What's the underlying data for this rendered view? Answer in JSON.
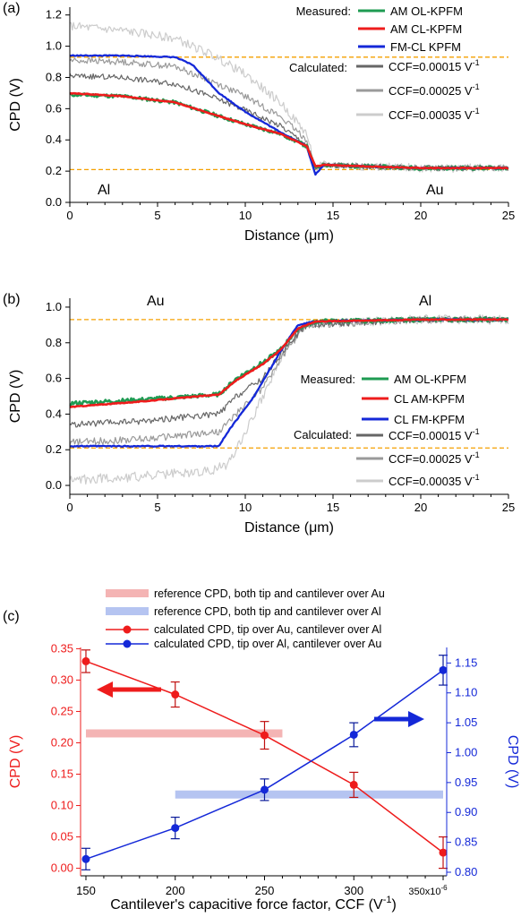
{
  "panels": [
    {
      "label": "(a)",
      "legend": {
        "measured_label": "Measured:",
        "calculated_label": "Calculated:",
        "entries": [
          "AM OL-KPFM",
          "AM CL-KPFM",
          "FM-CL KPFM",
          "CCF=0.00015 V",
          "CCF=0.00025 V",
          "CCF=0.00035 V"
        ],
        "unit_superscript": "-1"
      },
      "annotations": [
        "Al",
        "Au"
      ]
    },
    {
      "label": "(b)",
      "legend": {
        "measured_label": "Measured:",
        "calculated_label": "Calculated:",
        "entries": [
          "AM OL-KPFM",
          "CL AM-KPFM",
          "CL FM-KPFM",
          "CCF=0.00015 V",
          "CCF=0.00025 V",
          "CCF=0.00035 V"
        ],
        "unit_superscript": "-1"
      },
      "annotations": [
        "Au",
        "Al"
      ]
    },
    {
      "label": "(c)",
      "legend": {
        "entries": [
          "reference CPD, both tip and cantilever over Au",
          "reference CPD, both tip and cantilever over Al",
          "calculated CPD, tip over Au, cantilever over Al",
          "calculated CPD, tip over Al, cantilever over Au"
        ]
      },
      "xlabel": "Cantilever's capacitive force factor, CCF (V",
      "xlabel_sup": "-1",
      "xlabel_close": ")",
      "x_multiplier": "350x10",
      "x_multiplier_sup": "-6",
      "ylabel_left": "CPD (V)",
      "ylabel_right": "CPD (V)"
    }
  ],
  "colors": {
    "green": "#1e9b52",
    "red": "#ee1c1c",
    "blue": "#1428d8",
    "gray1": "#666666",
    "gray2": "#9a9a9a",
    "gray3": "#cccccc",
    "orange": "#f5a000",
    "pink": "#f4b4b4",
    "lightblue": "#b5c4f1",
    "errorbar_red": "#c01010",
    "errorbar_blue": "#0a1a9a"
  },
  "chart_data": [
    {
      "type": "line",
      "panel": "(a)",
      "xlabel": "Distance (μm)",
      "ylabel": "CPD (V)",
      "xlim": [
        0,
        25
      ],
      "ylim": [
        0,
        1.25
      ],
      "xticks": [
        "0",
        "5",
        "10",
        "15",
        "20",
        "25"
      ],
      "yticks": [
        "0.0",
        "0.2",
        "0.4",
        "0.6",
        "0.8",
        "1.0",
        "1.2"
      ],
      "reference_lines": [
        0.93,
        0.21
      ],
      "series": [
        {
          "name": "AM OL-KPFM",
          "x": [
            0,
            3,
            6,
            8,
            10,
            12,
            13.5,
            14,
            14.5,
            17,
            20,
            25
          ],
          "y": [
            0.69,
            0.68,
            0.64,
            0.57,
            0.5,
            0.44,
            0.36,
            0.22,
            0.24,
            0.23,
            0.22,
            0.22
          ]
        },
        {
          "name": "AM CL-KPFM",
          "x": [
            0,
            3,
            6,
            8,
            10,
            12,
            13.5,
            14,
            14.5,
            17,
            20,
            25
          ],
          "y": [
            0.7,
            0.68,
            0.64,
            0.57,
            0.5,
            0.44,
            0.36,
            0.23,
            0.24,
            0.23,
            0.22,
            0.22
          ]
        },
        {
          "name": "FM-CL KPFM",
          "x": [
            0,
            3,
            6,
            7,
            8.5,
            10,
            12,
            13.5,
            14,
            14.5,
            17,
            20,
            25
          ],
          "y": [
            0.94,
            0.94,
            0.93,
            0.88,
            0.7,
            0.58,
            0.45,
            0.36,
            0.18,
            0.24,
            0.23,
            0.22,
            0.22
          ]
        },
        {
          "name": "CCF=0.00015 V-1",
          "x": [
            0,
            3,
            6,
            8,
            10,
            12,
            13.5,
            14,
            14.5,
            17,
            20,
            25
          ],
          "y": [
            0.81,
            0.8,
            0.76,
            0.68,
            0.59,
            0.49,
            0.37,
            0.22,
            0.24,
            0.23,
            0.22,
            0.22
          ]
        },
        {
          "name": "CCF=0.00025 V-1",
          "x": [
            0,
            3,
            6,
            8,
            10,
            12,
            13.5,
            14,
            14.5,
            17,
            20,
            25
          ],
          "y": [
            0.91,
            0.9,
            0.87,
            0.78,
            0.68,
            0.55,
            0.4,
            0.22,
            0.24,
            0.23,
            0.22,
            0.22
          ]
        },
        {
          "name": "CCF=0.00035 V-1",
          "x": [
            0,
            3,
            6,
            8,
            10,
            12,
            13.5,
            14,
            14.5,
            17,
            20,
            25
          ],
          "y": [
            1.13,
            1.1,
            1.05,
            0.95,
            0.82,
            0.64,
            0.44,
            0.22,
            0.24,
            0.23,
            0.22,
            0.22
          ]
        }
      ]
    },
    {
      "type": "line",
      "panel": "(b)",
      "xlabel": "Distance (μm)",
      "ylabel": "CPD (V)",
      "xlim": [
        0,
        25
      ],
      "ylim": [
        -0.05,
        1.05
      ],
      "xticks": [
        "0",
        "5",
        "10",
        "15",
        "20",
        "25"
      ],
      "yticks": [
        "0.0",
        "0.2",
        "0.4",
        "0.6",
        "0.8",
        "1.0"
      ],
      "reference_lines": [
        0.93,
        0.21
      ],
      "series": [
        {
          "name": "AM OL-KPFM",
          "x": [
            0,
            4,
            8.5,
            9.5,
            11,
            12,
            13,
            14,
            20,
            25
          ],
          "y": [
            0.46,
            0.48,
            0.51,
            0.6,
            0.69,
            0.76,
            0.88,
            0.92,
            0.93,
            0.93
          ]
        },
        {
          "name": "CL AM-KPFM",
          "x": [
            0,
            4,
            8.5,
            9.5,
            11,
            12,
            13,
            14,
            20,
            25
          ],
          "y": [
            0.44,
            0.47,
            0.51,
            0.59,
            0.68,
            0.76,
            0.88,
            0.92,
            0.93,
            0.93
          ]
        },
        {
          "name": "CL FM-KPFM",
          "x": [
            0,
            4,
            8.5,
            9,
            10.5,
            12,
            13,
            14,
            20,
            25
          ],
          "y": [
            0.22,
            0.22,
            0.22,
            0.3,
            0.5,
            0.75,
            0.9,
            0.92,
            0.93,
            0.93
          ]
        },
        {
          "name": "CCF=0.00015 V-1",
          "x": [
            0,
            4,
            8.5,
            9.5,
            11,
            12.5,
            13.5,
            20,
            25
          ],
          "y": [
            0.34,
            0.36,
            0.4,
            0.5,
            0.6,
            0.8,
            0.9,
            0.93,
            0.93
          ]
        },
        {
          "name": "CCF=0.00025 V-1",
          "x": [
            0,
            4,
            8.5,
            9.5,
            11,
            12.5,
            13.5,
            20,
            25
          ],
          "y": [
            0.24,
            0.26,
            0.3,
            0.4,
            0.55,
            0.78,
            0.9,
            0.93,
            0.93
          ]
        },
        {
          "name": "CCF=0.00035 V-1",
          "x": [
            0,
            4,
            8,
            9,
            10,
            11.5,
            12.5,
            13.5,
            20,
            25
          ],
          "y": [
            0.03,
            0.05,
            0.08,
            0.12,
            0.3,
            0.6,
            0.8,
            0.9,
            0.93,
            0.93
          ]
        }
      ]
    },
    {
      "type": "line",
      "panel": "(c)",
      "xlim": [
        147,
        352
      ],
      "ylim_left": [
        -0.012,
        0.352
      ],
      "ylim_right": [
        0.794,
        1.176
      ],
      "xticks": [
        "150",
        "200",
        "250",
        "300"
      ],
      "yticks_left": [
        "0.00",
        "0.05",
        "0.10",
        "0.15",
        "0.20",
        "0.25",
        "0.30",
        "0.35"
      ],
      "yticks_right": [
        "0.80",
        "0.85",
        "0.90",
        "0.95",
        "1.00",
        "1.05",
        "1.10",
        "1.15"
      ],
      "reference": {
        "au": {
          "y": 0.215,
          "x": [
            150,
            260
          ]
        },
        "al": {
          "y": 0.93,
          "x": [
            200,
            350
          ]
        }
      },
      "series": [
        {
          "name": "calculated CPD, tip over Au, cantilever over Al",
          "axis": "left",
          "x": [
            150,
            200,
            250,
            300,
            350
          ],
          "y": [
            0.33,
            0.277,
            0.212,
            0.133,
            0.025
          ],
          "err": [
            0.018,
            0.02,
            0.022,
            0.02,
            0.025
          ]
        },
        {
          "name": "calculated CPD, tip over Al, cantilever over Au",
          "axis": "right",
          "x": [
            150,
            200,
            250,
            300,
            350
          ],
          "y": [
            0.822,
            0.874,
            0.938,
            1.03,
            1.138
          ],
          "err": [
            0.018,
            0.018,
            0.018,
            0.02,
            0.025
          ]
        }
      ]
    }
  ]
}
